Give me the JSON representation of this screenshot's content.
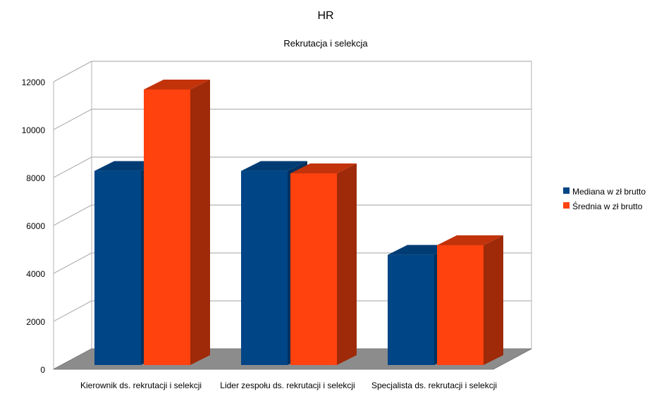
{
  "chart_data": {
    "type": "bar",
    "title": "HR",
    "subtitle": "Rekrutacja i selekcja",
    "categories": [
      "Kierownik ds. rekrutacji i selekcji",
      "Lider zespołu ds. rekrutacji i selekcji",
      "Specjalista ds. rekrutacji i selekcji"
    ],
    "series": [
      {
        "name": "Mediana w zł brutto",
        "values": [
          8100,
          8100,
          4600
        ],
        "color": "#004586",
        "side_color": "#00315e",
        "top_color": "#003c74"
      },
      {
        "name": "Średnia w zł brutto",
        "values": [
          11500,
          8000,
          5000
        ],
        "color": "#ff420e",
        "side_color": "#9e2a09",
        "top_color": "#c2330b"
      }
    ],
    "ylim": [
      0,
      12000
    ],
    "yticks": [
      "0",
      "2000",
      "4000",
      "6000",
      "8000",
      "10000",
      "12000"
    ],
    "grid": true,
    "legend_position": "right",
    "style": "3d"
  }
}
